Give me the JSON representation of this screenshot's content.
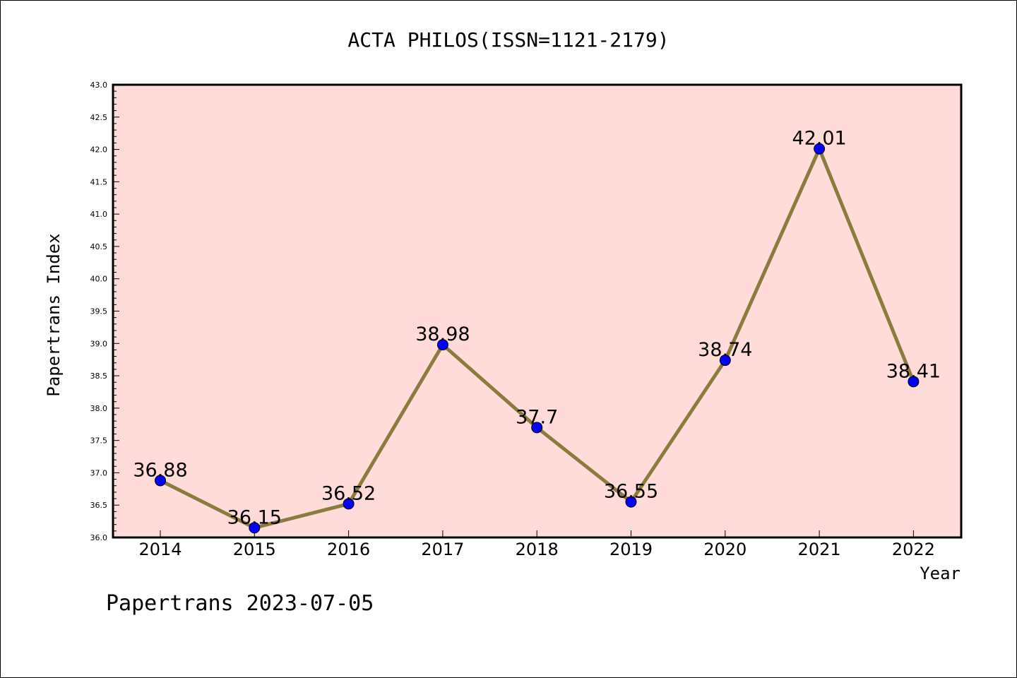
{
  "chart_data": {
    "type": "line",
    "title": "ACTA PHILOS(ISSN=1121-2179)",
    "xlabel": "Year",
    "ylabel": "Papertrans Index",
    "x": [
      "2014",
      "2015",
      "2016",
      "2017",
      "2018",
      "2019",
      "2020",
      "2021",
      "2022"
    ],
    "values": [
      36.88,
      36.15,
      36.52,
      38.98,
      37.7,
      36.55,
      38.74,
      42.01,
      38.41
    ],
    "data_labels": [
      "36.88",
      "36.15",
      "36.52",
      "38.98",
      "37.7",
      "36.55",
      "38.74",
      "42.01",
      "38.41"
    ],
    "ylim": [
      36.0,
      43.0
    ],
    "yticks": [
      "36.0",
      "36.5",
      "37.0",
      "37.5",
      "38.0",
      "38.5",
      "39.0",
      "39.5",
      "40.0",
      "40.5",
      "41.0",
      "41.5",
      "42.0",
      "42.5",
      "43.0"
    ],
    "grid": false,
    "colors": {
      "plot_background": "#ffdcda",
      "line": "#8b7b3d",
      "marker": "#0000ff"
    }
  },
  "footer": "Papertrans 2023-07-05"
}
